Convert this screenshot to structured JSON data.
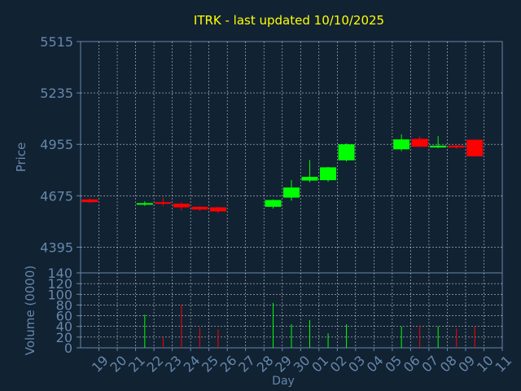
{
  "chart_data": [
    {
      "type": "candlestick",
      "title": "ITRK - last updated 10/10/2025",
      "ylabel": "Price",
      "ylim": [
        4255,
        5515
      ],
      "y_ticks": [
        4395,
        4675,
        4955,
        5235,
        5515
      ],
      "grid": true,
      "colors": {
        "up": "#00ff00",
        "down": "#ff0000",
        "background": "#112233",
        "axis": "#6688aa",
        "text": "#ffff00"
      },
      "candles": [
        {
          "day": "19",
          "open": 4655,
          "close": 4640,
          "high": 4660,
          "low": 4635
        },
        {
          "day": "22",
          "open": 4628,
          "close": 4635,
          "high": 4645,
          "low": 4620
        },
        {
          "day": "23",
          "open": 4640,
          "close": 4632,
          "high": 4665,
          "low": 4620
        },
        {
          "day": "24",
          "open": 4632,
          "close": 4612,
          "high": 4638,
          "low": 4595
        },
        {
          "day": "25",
          "open": 4615,
          "close": 4600,
          "high": 4618,
          "low": 4592
        },
        {
          "day": "26",
          "open": 4612,
          "close": 4590,
          "high": 4615,
          "low": 4582
        },
        {
          "day": "29",
          "open": 4615,
          "close": 4652,
          "high": 4655,
          "low": 4605
        },
        {
          "day": "30",
          "open": 4665,
          "close": 4720,
          "high": 4760,
          "low": 4648
        },
        {
          "day": "01",
          "open": 4758,
          "close": 4778,
          "high": 4870,
          "low": 4748
        },
        {
          "day": "02",
          "open": 4760,
          "close": 4830,
          "high": 4832,
          "low": 4752
        },
        {
          "day": "03",
          "open": 4868,
          "close": 4955,
          "high": 4960,
          "low": 4862
        },
        {
          "day": "06",
          "open": 4928,
          "close": 4982,
          "high": 5010,
          "low": 4918
        },
        {
          "day": "07",
          "open": 4985,
          "close": 4942,
          "high": 4998,
          "low": 4940
        },
        {
          "day": "08",
          "open": 4938,
          "close": 4948,
          "high": 5000,
          "low": 4935
        },
        {
          "day": "09",
          "open": 4948,
          "close": 4938,
          "high": 4958,
          "low": 4932
        },
        {
          "day": "10",
          "open": 4980,
          "close": 4890,
          "high": 4982,
          "low": 4888
        }
      ]
    },
    {
      "type": "bar",
      "ylabel": "Volume (0000)",
      "xlabel": "Day",
      "ylim": [
        0,
        140
      ],
      "y_ticks": [
        0,
        20,
        40,
        60,
        80,
        100,
        120,
        140
      ],
      "categories": [
        "19",
        "20",
        "21",
        "22",
        "23",
        "24",
        "25",
        "26",
        "27",
        "28",
        "29",
        "30",
        "01",
        "02",
        "03",
        "04",
        "05",
        "06",
        "07",
        "08",
        "09",
        "10",
        "11"
      ],
      "volumes": [
        {
          "day": "22",
          "value": 62,
          "direction": "up"
        },
        {
          "day": "23",
          "value": 20,
          "direction": "down"
        },
        {
          "day": "24",
          "value": 80,
          "direction": "down"
        },
        {
          "day": "25",
          "value": 38,
          "direction": "down"
        },
        {
          "day": "26",
          "value": 34,
          "direction": "down"
        },
        {
          "day": "29",
          "value": 84,
          "direction": "up"
        },
        {
          "day": "30",
          "value": 44,
          "direction": "up"
        },
        {
          "day": "01",
          "value": 52,
          "direction": "up"
        },
        {
          "day": "02",
          "value": 27,
          "direction": "up"
        },
        {
          "day": "03",
          "value": 44,
          "direction": "up"
        },
        {
          "day": "06",
          "value": 40,
          "direction": "up"
        },
        {
          "day": "07",
          "value": 42,
          "direction": "down"
        },
        {
          "day": "08",
          "value": 40,
          "direction": "up"
        },
        {
          "day": "09",
          "value": 36,
          "direction": "down"
        },
        {
          "day": "10",
          "value": 40,
          "direction": "down"
        }
      ]
    }
  ]
}
